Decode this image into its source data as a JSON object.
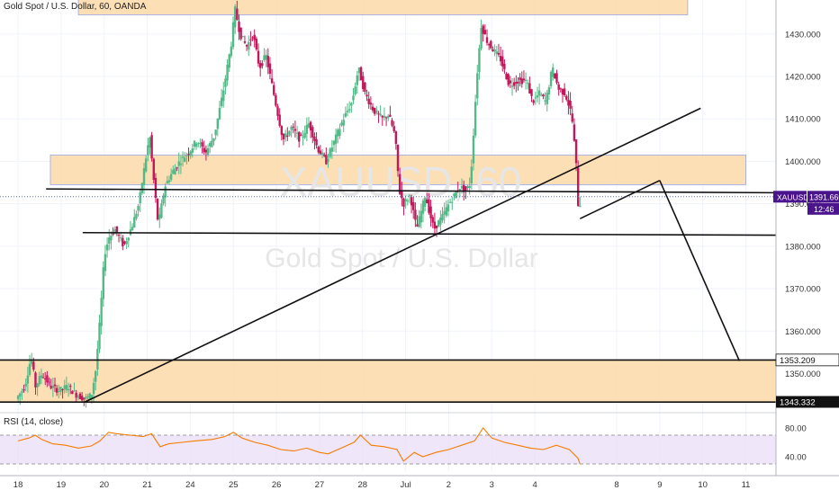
{
  "header": {
    "title": "Gold Spot / U.S. Dollar, 60, OANDA"
  },
  "watermark": {
    "symbol": "XAUUSD, 60",
    "name": "Gold Spot / U.S. Dollar"
  },
  "price_badges": {
    "last": {
      "symbol": "XAUUSD",
      "value": "1391.660",
      "countdown": "12:46"
    },
    "level_upper": "1353.209",
    "level_lower": "1343.332"
  },
  "rsi": {
    "label": "RSI (14, close)",
    "ticks": [
      "80.00",
      "40.00"
    ]
  },
  "colors": {
    "bull": "#53b987",
    "bear": "#c2185b",
    "zone": "#fbd9a8",
    "rsi_line": "#f57c00",
    "rsi_band": "#e9dcf7",
    "badge": "#4a148c"
  },
  "chart_data": {
    "type": "candlestick",
    "symbol": "XAUUSD",
    "timeframe": "60",
    "y_axis": {
      "min": 1341,
      "max": 1438,
      "ticks": [
        1430,
        1420,
        1410,
        1400,
        1390,
        1380,
        1370,
        1360,
        1350
      ]
    },
    "x_axis": {
      "ticks": [
        {
          "label": "18",
          "t": 0
        },
        {
          "label": "19",
          "t": 1
        },
        {
          "label": "20",
          "t": 2
        },
        {
          "label": "21",
          "t": 3
        },
        {
          "label": "24",
          "t": 4
        },
        {
          "label": "25",
          "t": 5
        },
        {
          "label": "26",
          "t": 6
        },
        {
          "label": "27",
          "t": 7
        },
        {
          "label": "28",
          "t": 8
        },
        {
          "label": "Jul",
          "t": 9
        },
        {
          "label": "2",
          "t": 10
        },
        {
          "label": "3",
          "t": 11
        },
        {
          "label": "4",
          "t": 12
        },
        {
          "label": "8",
          "t": 13.9
        },
        {
          "label": "9",
          "t": 14.9
        },
        {
          "label": "10",
          "t": 15.9
        },
        {
          "label": "11",
          "t": 16.9
        }
      ],
      "t_max": 17.6
    },
    "last_price": 1391.66,
    "candle_path": [
      [
        0.0,
        1344
      ],
      [
        0.2,
        1347
      ],
      [
        0.35,
        1354
      ],
      [
        0.45,
        1347
      ],
      [
        0.6,
        1350
      ],
      [
        0.8,
        1347
      ],
      [
        1.0,
        1346
      ],
      [
        1.2,
        1347
      ],
      [
        1.4,
        1345
      ],
      [
        1.6,
        1344
      ],
      [
        1.75,
        1345
      ],
      [
        1.85,
        1351
      ],
      [
        1.95,
        1363
      ],
      [
        2.05,
        1378
      ],
      [
        2.15,
        1382
      ],
      [
        2.3,
        1384
      ],
      [
        2.5,
        1380
      ],
      [
        2.7,
        1385
      ],
      [
        2.85,
        1390
      ],
      [
        3.0,
        1400
      ],
      [
        3.1,
        1406
      ],
      [
        3.2,
        1395
      ],
      [
        3.3,
        1385
      ],
      [
        3.45,
        1394
      ],
      [
        3.6,
        1397
      ],
      [
        3.8,
        1400
      ],
      [
        4.0,
        1402
      ],
      [
        4.2,
        1405
      ],
      [
        4.4,
        1402
      ],
      [
        4.6,
        1406
      ],
      [
        4.8,
        1416
      ],
      [
        5.0,
        1428
      ],
      [
        5.08,
        1436
      ],
      [
        5.2,
        1430
      ],
      [
        5.35,
        1427
      ],
      [
        5.5,
        1430
      ],
      [
        5.65,
        1422
      ],
      [
        5.8,
        1425
      ],
      [
        6.0,
        1415
      ],
      [
        6.2,
        1405
      ],
      [
        6.4,
        1408
      ],
      [
        6.6,
        1405
      ],
      [
        6.8,
        1409
      ],
      [
        7.0,
        1403
      ],
      [
        7.2,
        1400
      ],
      [
        7.4,
        1405
      ],
      [
        7.6,
        1410
      ],
      [
        7.8,
        1414
      ],
      [
        7.95,
        1422
      ],
      [
        8.1,
        1416
      ],
      [
        8.3,
        1412
      ],
      [
        8.5,
        1410
      ],
      [
        8.65,
        1411
      ],
      [
        8.8,
        1406
      ],
      [
        8.9,
        1393
      ],
      [
        9.0,
        1390
      ],
      [
        9.15,
        1392
      ],
      [
        9.3,
        1384
      ],
      [
        9.5,
        1392
      ],
      [
        9.7,
        1384
      ],
      [
        9.9,
        1387
      ],
      [
        10.05,
        1390
      ],
      [
        10.3,
        1394
      ],
      [
        10.45,
        1393
      ],
      [
        10.55,
        1395
      ],
      [
        10.7,
        1420
      ],
      [
        10.8,
        1432
      ],
      [
        10.95,
        1428
      ],
      [
        11.1,
        1426
      ],
      [
        11.25,
        1424
      ],
      [
        11.45,
        1418
      ],
      [
        11.65,
        1419
      ],
      [
        11.85,
        1419
      ],
      [
        12.0,
        1414
      ],
      [
        12.15,
        1416
      ],
      [
        12.3,
        1414
      ],
      [
        12.45,
        1422
      ],
      [
        12.6,
        1417
      ],
      [
        12.75,
        1416
      ],
      [
        12.9,
        1411
      ],
      [
        13.0,
        1400
      ],
      [
        13.05,
        1390
      ]
    ],
    "rsi_values": [
      [
        0.0,
        62
      ],
      [
        0.25,
        66
      ],
      [
        0.4,
        70
      ],
      [
        0.55,
        64
      ],
      [
        0.8,
        58
      ],
      [
        1.1,
        56
      ],
      [
        1.4,
        52
      ],
      [
        1.7,
        55
      ],
      [
        1.9,
        62
      ],
      [
        2.1,
        74
      ],
      [
        2.3,
        72
      ],
      [
        2.6,
        70
      ],
      [
        2.9,
        68
      ],
      [
        3.1,
        72
      ],
      [
        3.3,
        54
      ],
      [
        3.5,
        58
      ],
      [
        3.8,
        60
      ],
      [
        4.1,
        62
      ],
      [
        4.5,
        64
      ],
      [
        4.8,
        68
      ],
      [
        5.0,
        74
      ],
      [
        5.2,
        66
      ],
      [
        5.5,
        60
      ],
      [
        5.8,
        56
      ],
      [
        6.1,
        50
      ],
      [
        6.4,
        48
      ],
      [
        6.7,
        52
      ],
      [
        7.0,
        46
      ],
      [
        7.2,
        44
      ],
      [
        7.5,
        52
      ],
      [
        7.8,
        60
      ],
      [
        7.95,
        70
      ],
      [
        8.2,
        56
      ],
      [
        8.5,
        54
      ],
      [
        8.8,
        50
      ],
      [
        8.95,
        34
      ],
      [
        9.2,
        46
      ],
      [
        9.4,
        40
      ],
      [
        9.7,
        46
      ],
      [
        10.0,
        50
      ],
      [
        10.3,
        56
      ],
      [
        10.6,
        62
      ],
      [
        10.8,
        80
      ],
      [
        11.0,
        66
      ],
      [
        11.3,
        60
      ],
      [
        11.6,
        56
      ],
      [
        11.9,
        52
      ],
      [
        12.2,
        50
      ],
      [
        12.5,
        56
      ],
      [
        12.8,
        50
      ],
      [
        13.0,
        38
      ],
      [
        13.05,
        30
      ]
    ],
    "rsi_range": [
      20,
      100
    ],
    "rsi_band": [
      30,
      70
    ],
    "zones": [
      {
        "name": "top-resistance-zone",
        "t0": 1.4,
        "t1": 15.55,
        "p0": 1434.5,
        "p1": 1440
      },
      {
        "name": "mid-resistance-zone",
        "t0": 0.75,
        "t1": 16.9,
        "p0": 1394.5,
        "p1": 1401.5
      },
      {
        "name": "bottom-support-zone",
        "t0": -0.5,
        "t1": 17.6,
        "p0": 1343.3,
        "p1": 1353.2
      }
    ],
    "lines": [
      {
        "name": "horizontal-resistance-line",
        "t0": 0.65,
        "p0": 1393.5,
        "t1": 17.6,
        "p1": 1392.6
      },
      {
        "name": "horizontal-support-line",
        "t0": 1.5,
        "p0": 1383.2,
        "t1": 17.6,
        "p1": 1382.6
      },
      {
        "name": "rising-trendline",
        "t0": 1.55,
        "p0": 1343.3,
        "t1": 15.85,
        "p1": 1412.5
      },
      {
        "name": "upper-level-line",
        "t0": -0.5,
        "p0": 1353.2,
        "t1": 17.6,
        "p1": 1353.2
      },
      {
        "name": "lower-level-line",
        "t0": -0.5,
        "p0": 1343.3,
        "t1": 17.6,
        "p1": 1343.3
      },
      {
        "name": "projection-up-leg",
        "t0": 13.05,
        "p0": 1386.5,
        "t1": 14.9,
        "p1": 1395.5
      },
      {
        "name": "projection-down-leg",
        "t0": 14.9,
        "p0": 1395.5,
        "t1": 16.75,
        "p1": 1353.0
      }
    ]
  }
}
